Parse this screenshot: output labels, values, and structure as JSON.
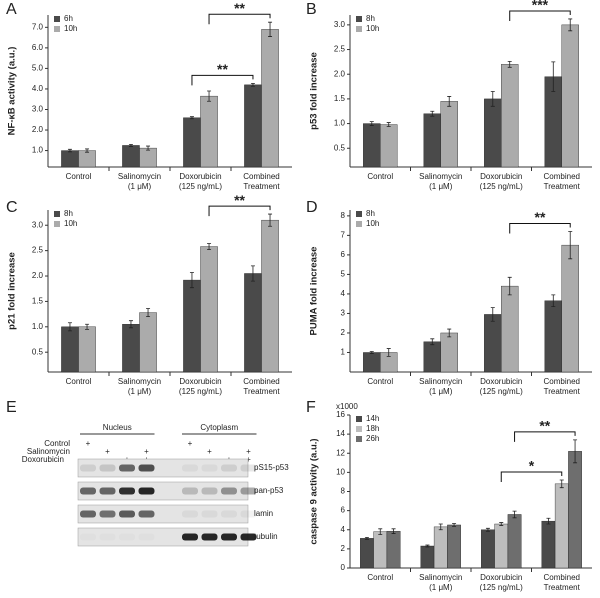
{
  "chart_data": [
    {
      "type": "bar",
      "label": "A",
      "ylabel": "NF-κB activity (a.u.)",
      "categories": [
        [
          "Control"
        ],
        [
          "Salinomycin",
          "(1 μM)"
        ],
        [
          "Doxorubicin",
          "(125 ng/mL)"
        ],
        [
          "Combined",
          "Treatment"
        ]
      ],
      "series": [
        {
          "name": "6h",
          "color": "#4a4a4a",
          "values": [
            1.0,
            1.25,
            2.6,
            4.2
          ],
          "errors": [
            0.06,
            0.05,
            0.05,
            0.07
          ]
        },
        {
          "name": "10h",
          "color": "#ababab",
          "values": [
            1.0,
            1.12,
            3.65,
            6.9
          ],
          "errors": [
            0.08,
            0.1,
            0.25,
            0.35
          ]
        }
      ],
      "ylim": [
        0.2,
        7.6
      ],
      "yticks": [
        {
          "value": 1,
          "label": "1.0"
        },
        {
          "value": 2,
          "label": "2.0"
        },
        {
          "value": 3,
          "label": "3.0"
        },
        {
          "value": 4,
          "label": "4.0"
        },
        {
          "value": 5,
          "label": "5.0"
        },
        {
          "value": 6,
          "label": "6.0"
        },
        {
          "value": 7,
          "label": "7.0"
        }
      ],
      "annotations": [
        {
          "text": "**"
        },
        {
          "text": "**"
        }
      ]
    },
    {
      "type": "bar",
      "label": "B",
      "ylabel": "p53 fold increase",
      "categories": [
        [
          "Control"
        ],
        [
          "Salinomycin",
          "(1 μM)"
        ],
        [
          "Doxorubicin",
          "(125 ng/mL)"
        ],
        [
          "Combined",
          "Treatment"
        ]
      ],
      "series": [
        {
          "name": "8h",
          "color": "#4a4a4a",
          "values": [
            1.0,
            1.2,
            1.5,
            1.95
          ],
          "errors": [
            0.04,
            0.05,
            0.15,
            0.3
          ]
        },
        {
          "name": "10h",
          "color": "#ababab",
          "values": [
            0.98,
            1.45,
            2.2,
            3.0
          ],
          "errors": [
            0.04,
            0.1,
            0.06,
            0.12
          ]
        }
      ],
      "ylim": [
        0.12,
        3.2
      ],
      "yticks": [
        0.5,
        {
          "value": 1,
          "label": "1.0"
        },
        1.5,
        {
          "value": 2,
          "label": "2.0"
        },
        2.5,
        {
          "value": 3,
          "label": "3.0"
        }
      ],
      "annotations": [
        {
          "text": "***"
        }
      ]
    },
    {
      "type": "bar",
      "label": "C",
      "ylabel": "p21 fold increase",
      "categories": [
        [
          "Control"
        ],
        [
          "Salinomycin",
          "(1 μM)"
        ],
        [
          "Doxorubicin",
          "(125 ng/mL)"
        ],
        [
          "Combined",
          "Treatment"
        ]
      ],
      "series": [
        {
          "name": "8h",
          "color": "#4a4a4a",
          "values": [
            1.0,
            1.05,
            1.92,
            2.05
          ],
          "errors": [
            0.08,
            0.07,
            0.15,
            0.15
          ]
        },
        {
          "name": "10h",
          "color": "#ababab",
          "values": [
            1.0,
            1.28,
            2.58,
            3.1
          ],
          "errors": [
            0.05,
            0.08,
            0.06,
            0.12
          ]
        }
      ],
      "ylim": [
        0.11,
        3.3
      ],
      "yticks": [
        0.5,
        {
          "value": 1,
          "label": "1.0"
        },
        1.5,
        {
          "value": 2,
          "label": "2.0"
        },
        2.5,
        {
          "value": 3,
          "label": "3.0"
        }
      ],
      "annotations": [
        {
          "text": "**"
        }
      ]
    },
    {
      "type": "bar",
      "label": "D",
      "ylabel": "PUMA fold increase",
      "categories": [
        [
          "Control"
        ],
        [
          "Salinomycin",
          "(1 μM)"
        ],
        [
          "Doxorubicin",
          "(125 ng/mL)"
        ],
        [
          "Combined",
          "Treatment"
        ]
      ],
      "series": [
        {
          "name": "8h",
          "color": "#4a4a4a",
          "values": [
            1.0,
            1.55,
            2.95,
            3.65
          ],
          "errors": [
            0.05,
            0.15,
            0.35,
            0.3
          ]
        },
        {
          "name": "10h",
          "color": "#ababab",
          "values": [
            1.0,
            2.0,
            4.4,
            6.5
          ],
          "errors": [
            0.2,
            0.2,
            0.45,
            0.7
          ]
        }
      ],
      "ylim": [
        0,
        8.3
      ],
      "yticks": [
        1,
        2,
        3,
        4,
        5,
        6,
        7,
        8
      ],
      "annotations": [
        {
          "text": "**"
        }
      ]
    },
    {
      "type": "bar",
      "label": "F",
      "ylabel": "caspase 9 activity (a.u.)",
      "scale_note": "x1000",
      "categories": [
        [
          "Control"
        ],
        [
          "Salinomycin",
          "(1 μM)"
        ],
        [
          "Doxorubicin",
          "(125 ng/mL)"
        ],
        [
          "Combined",
          "Treatment"
        ]
      ],
      "series": [
        {
          "name": "14h",
          "color": "#4a4a4a",
          "values": [
            3.1,
            2.3,
            4.0,
            4.9
          ],
          "errors": [
            0.1,
            0.1,
            0.15,
            0.3
          ]
        },
        {
          "name": "18h",
          "color": "#bdbdbd",
          "values": [
            3.8,
            4.3,
            4.6,
            8.8
          ],
          "errors": [
            0.3,
            0.3,
            0.15,
            0.4
          ]
        },
        {
          "name": "26h",
          "color": "#6e6e6e",
          "values": [
            3.85,
            4.5,
            5.6,
            12.2
          ],
          "errors": [
            0.25,
            0.15,
            0.35,
            1.2
          ]
        }
      ],
      "ylim": [
        0,
        16
      ],
      "yticks": [
        0,
        2,
        4,
        6,
        8,
        10,
        12,
        14,
        16
      ],
      "annotations": [
        {
          "text": "**"
        },
        {
          "text": "*"
        }
      ]
    }
  ],
  "blot": {
    "label": "E",
    "fractions": [
      "Nucleus",
      "Cytoplasm"
    ],
    "treatments": [
      {
        "name": "Control",
        "lanes": [
          "+",
          null,
          null,
          null,
          "+",
          null,
          null,
          null
        ]
      },
      {
        "name": "Salinomycin",
        "lanes": [
          null,
          "+",
          null,
          "+",
          null,
          "+",
          null,
          "+"
        ]
      },
      {
        "name": "Doxorubicin",
        "lanes": [
          null,
          null,
          "+",
          "+",
          null,
          null,
          "+",
          "+"
        ]
      }
    ],
    "bands": [
      "pS15-p53",
      "pan-p53",
      "lamin",
      "tubulin"
    ]
  }
}
